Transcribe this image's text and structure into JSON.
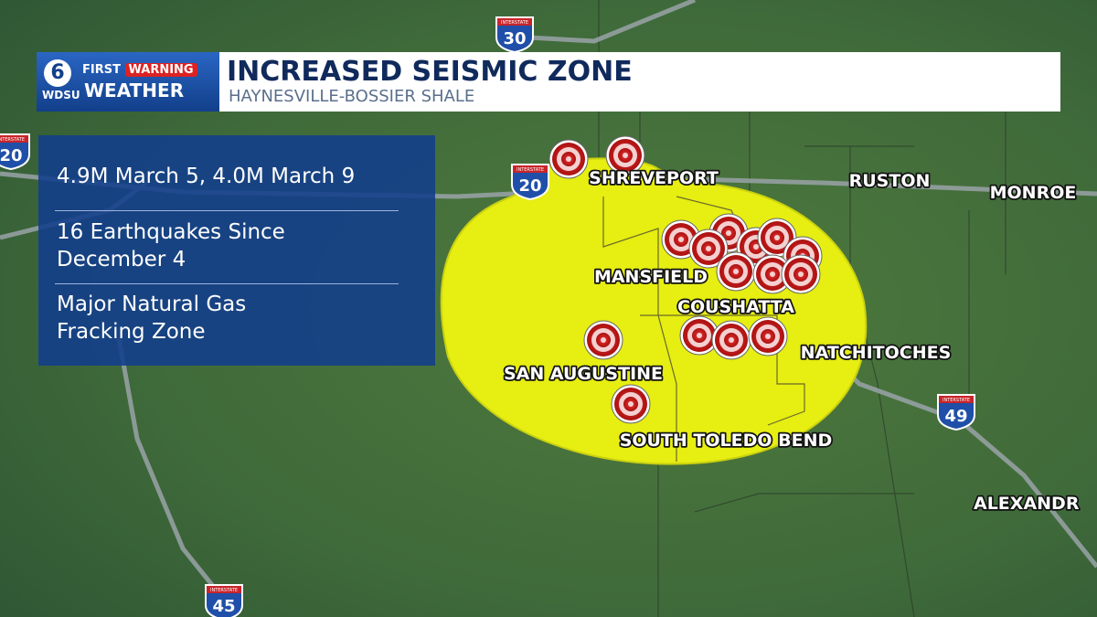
{
  "logo": {
    "channel": "6",
    "brand_first": "FIRST",
    "brand_warning": "WARNING",
    "station": "WDSU",
    "product": "WEATHER"
  },
  "header": {
    "title": "INCREASED SEISMIC ZONE",
    "subtitle": "HAYNESVILLE-BOSSIER SHALE"
  },
  "info_box": {
    "items": [
      "4.9M March 5, 4.0M March 9",
      "16 Earthquakes Since December 4",
      "Major Natural Gas Fracking Zone"
    ]
  },
  "cities": [
    "SHREVEPORT",
    "RUSTON",
    "MONROE",
    "MANSFIELD",
    "COUSHATTA",
    "NATCHITOCHES",
    "SAN AUGUSTINE",
    "SOUTH TOLEDO BEND",
    "ALEXANDR"
  ],
  "interstates": [
    {
      "label": "INTERSTATE",
      "number": "30"
    },
    {
      "label": "INTERSTATE",
      "number": "20"
    },
    {
      "label": "INTERSTATE",
      "number": "20"
    },
    {
      "label": "INTERSTATE",
      "number": "49"
    },
    {
      "label": "INTERSTATE",
      "number": "45"
    }
  ]
}
